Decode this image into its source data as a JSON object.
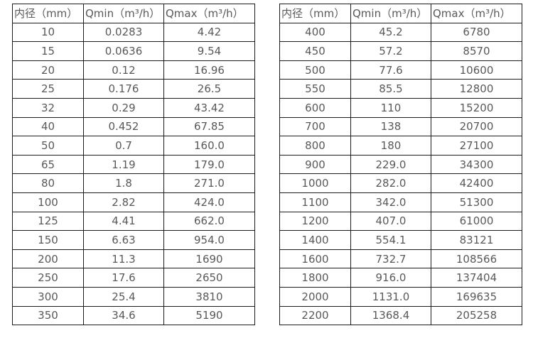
{
  "page": {
    "background_color": "#ffffff",
    "text_color": "#595959",
    "border_color": "#1c1c1c"
  },
  "tables": [
    {
      "name": "flow-range-table-small-diameters",
      "headers": [
        "内径（mm）",
        "Qmin（m³/h）",
        "Qmax（m³/h）"
      ],
      "rows": [
        [
          "10",
          "0.0283",
          "4.42"
        ],
        [
          "15",
          "0.0636",
          "9.54"
        ],
        [
          "20",
          "0.12",
          "16.96"
        ],
        [
          "25",
          "0.176",
          "26.5"
        ],
        [
          "32",
          "0.29",
          "43.42"
        ],
        [
          "40",
          "0.452",
          "67.85"
        ],
        [
          "50",
          "0.7",
          "160.0"
        ],
        [
          "65",
          "1.19",
          "179.0"
        ],
        [
          "80",
          "1.8",
          "271.0"
        ],
        [
          "100",
          "2.82",
          "424.0"
        ],
        [
          "125",
          "4.41",
          "662.0"
        ],
        [
          "150",
          "6.63",
          "954.0"
        ],
        [
          "200",
          "11.3",
          "1690"
        ],
        [
          "250",
          "17.6",
          "2650"
        ],
        [
          "300",
          "25.4",
          "3810"
        ],
        [
          "350",
          "34.6",
          "5190"
        ]
      ]
    },
    {
      "name": "flow-range-table-large-diameters",
      "headers": [
        "内径（mm）",
        "Qmin（m³/h）",
        "Qmax（m³/h）"
      ],
      "rows": [
        [
          "400",
          "45.2",
          "6780"
        ],
        [
          "450",
          "57.2",
          "8570"
        ],
        [
          "500",
          "77.6",
          "10600"
        ],
        [
          "550",
          "85.5",
          "12800"
        ],
        [
          "600",
          "110",
          "15200"
        ],
        [
          "700",
          "138",
          "20700"
        ],
        [
          "800",
          "180",
          "27100"
        ],
        [
          "900",
          "229.0",
          "34300"
        ],
        [
          "1000",
          "282.0",
          "42400"
        ],
        [
          "1100",
          "342.0",
          "51300"
        ],
        [
          "1200",
          "407.0",
          "61000"
        ],
        [
          "1400",
          "554.1",
          "83121"
        ],
        [
          "1600",
          "732.7",
          "108566"
        ],
        [
          "1800",
          "916.0",
          "137404"
        ],
        [
          "2000",
          "1131.0",
          "169635"
        ],
        [
          "2200",
          "1368.4",
          "205258"
        ]
      ]
    }
  ]
}
